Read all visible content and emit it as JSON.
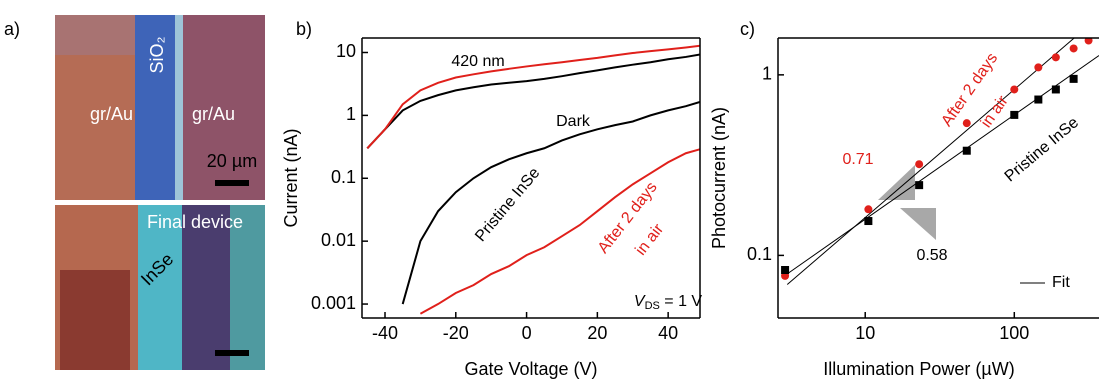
{
  "panel_labels": [
    "a)",
    "b)",
    "c)"
  ],
  "micrographs": {
    "top": [
      "gr/Au",
      "SiO₂",
      "gr/Au",
      "20 µm"
    ],
    "bottom": [
      "Final device",
      "InSe"
    ]
  },
  "chart_data": [
    {
      "type": "line",
      "xlabel": "Gate Voltage (V)",
      "ylabel": "Current (nA)",
      "log_y": true,
      "xlim": [
        -46.5,
        49
      ],
      "xticks": [
        -40,
        -20,
        0,
        20,
        40
      ],
      "ylim": [
        0.0006,
        17
      ],
      "yticks": [
        0.001,
        0.01,
        0.1,
        1,
        10
      ],
      "x": [
        -45,
        -40,
        -35,
        -30,
        -25,
        -20,
        -15,
        -10,
        -5,
        0,
        5,
        10,
        15,
        20,
        25,
        30,
        35,
        40,
        45,
        50
      ],
      "series": [
        {
          "color": "#000000",
          "values": [
            0.3,
            0.6,
            1.2,
            1.7,
            2.1,
            2.5,
            2.8,
            3.1,
            3.3,
            3.5,
            3.8,
            4.2,
            4.7,
            5.2,
            5.8,
            6.4,
            7,
            7.8,
            8.5,
            9.5
          ]
        },
        {
          "color": "#000000",
          "values": [
            null,
            null,
            0.001,
            0.01,
            0.03,
            0.06,
            0.1,
            0.15,
            0.2,
            0.25,
            0.3,
            0.4,
            0.5,
            0.6,
            0.7,
            0.8,
            1.0,
            1.2,
            1.4,
            1.7
          ]
        },
        {
          "color": "#e0201b",
          "values": [
            0.3,
            0.6,
            1.5,
            2.5,
            3.3,
            4,
            4.5,
            5,
            5.5,
            6,
            6.5,
            7,
            7.6,
            8.2,
            9,
            9.8,
            10.5,
            11.2,
            12,
            13
          ]
        },
        {
          "color": "#e0201b",
          "values": [
            null,
            null,
            null,
            0.0007,
            0.001,
            0.0015,
            0.002,
            0.003,
            0.004,
            0.006,
            0.008,
            0.012,
            0.018,
            0.03,
            0.05,
            0.08,
            0.12,
            0.18,
            0.25,
            0.3
          ]
        }
      ],
      "annotations": [
        "420 nm",
        "Dark",
        "Pristine InSe",
        "After 2 days",
        "in air"
      ],
      "condition": [
        "V",
        "DS",
        " = 1 V"
      ]
    },
    {
      "type": "scatter",
      "xlabel": "Illumination Power (µW)",
      "ylabel": "Photocurrent (nA)",
      "log_x": true,
      "log_y": true,
      "xlim": [
        2.6,
        370
      ],
      "xticks": [
        10,
        100
      ],
      "ylim": [
        0.045,
        1.6
      ],
      "yticks": [
        0.1,
        1
      ],
      "x": [
        2.9,
        10.5,
        23,
        48,
        100,
        145,
        190,
        250,
        315
      ],
      "series": [
        {
          "color": "#e0201b",
          "marker": "circle",
          "values": [
            0.077,
            0.18,
            0.32,
            0.54,
            0.83,
            1.1,
            1.25,
            1.4,
            1.55
          ]
        },
        {
          "color": "#000000",
          "marker": "square",
          "values": [
            0.083,
            0.155,
            0.245,
            0.38,
            0.6,
            0.73,
            0.83,
            0.95,
            null
          ]
        }
      ],
      "fit_label": "Fit",
      "fit_lines": [
        {
          "x": [
            3,
            370
          ],
          "values": [
            0.069,
            2.1
          ]
        },
        {
          "x": [
            3,
            370
          ],
          "values": [
            0.079,
            1.28
          ]
        }
      ],
      "annotations": [
        "After 2 days",
        "in air",
        "Pristine InSe",
        "0.71",
        "0.58"
      ]
    }
  ]
}
